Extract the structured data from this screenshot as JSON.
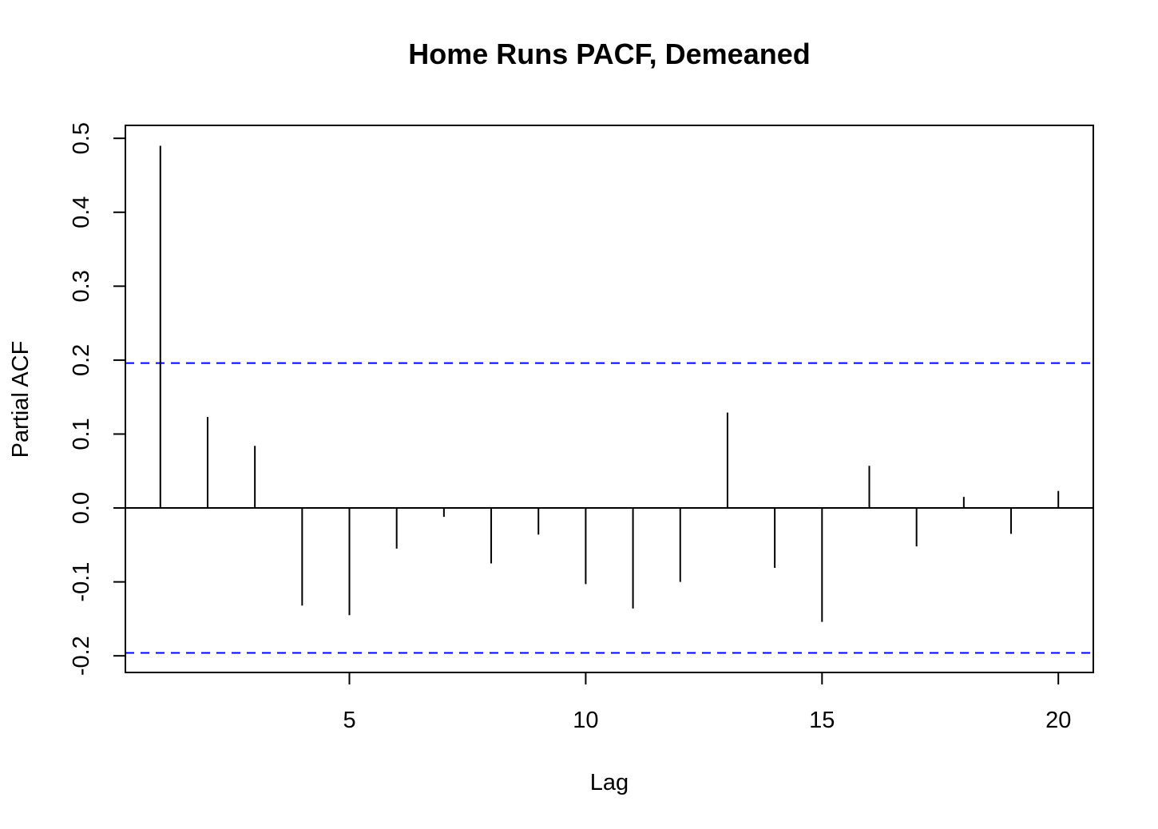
{
  "chart_data": {
    "type": "bar",
    "title": "Home Runs PACF, Demeaned",
    "xlabel": "Lag",
    "ylabel": "Partial ACF",
    "x": [
      1,
      2,
      3,
      4,
      5,
      6,
      7,
      8,
      9,
      10,
      11,
      12,
      13,
      14,
      15,
      16,
      17,
      18,
      19,
      20
    ],
    "values": [
      0.49,
      0.123,
      0.084,
      -0.132,
      -0.145,
      -0.055,
      -0.012,
      -0.075,
      -0.036,
      -0.103,
      -0.136,
      -0.1,
      0.129,
      -0.081,
      -0.154,
      0.057,
      -0.052,
      0.015,
      -0.035,
      0.023
    ],
    "xlim": [
      0.26,
      20.74
    ],
    "ylim": [
      -0.2225,
      0.5175
    ],
    "x_ticks": [
      "5",
      "10",
      "15",
      "20"
    ],
    "y_ticks": [
      "-0.2",
      "-0.1",
      "0.0",
      "0.1",
      "0.2",
      "0.3",
      "0.4",
      "0.5"
    ],
    "confidence_bounds": [
      0.196,
      -0.196
    ],
    "confidence_color": "#0000ff",
    "grid": false,
    "legend": "none"
  }
}
